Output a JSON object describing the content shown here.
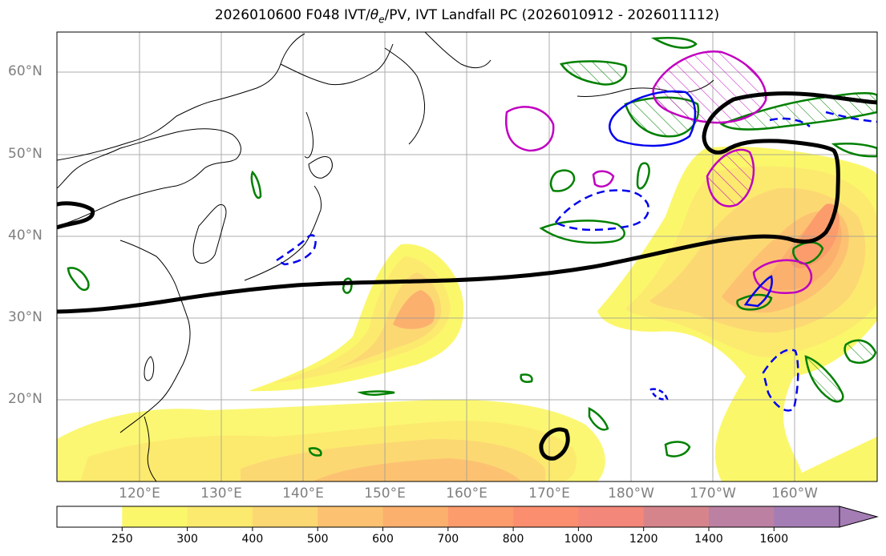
{
  "title": "2026010600 F048 IVT/θe/PV, IVT Landfall PC (2026010912 - 2026011112)",
  "title_parts": {
    "prefix": "2026010600 F048 IVT/",
    "theta": "θ",
    "sub": "e",
    "suffix": "/PV, IVT Landfall PC (2026010912 - 2026011112)"
  },
  "map": {
    "lat_labels": [
      "60°N",
      "50°N",
      "40°N",
      "30°N",
      "20°N"
    ],
    "lon_labels": [
      "120°E",
      "130°E",
      "140°E",
      "150°E",
      "160°E",
      "170°E",
      "180°W",
      "170°W",
      "160°W"
    ],
    "extent": {
      "lon_min": 110,
      "lon_max": 211,
      "lat_min": 10,
      "lat_max": 65
    }
  },
  "colorbar": {
    "levels": [
      "250",
      "300",
      "400",
      "500",
      "600",
      "700",
      "800",
      "1000",
      "1200",
      "1400",
      "1600"
    ],
    "colors": [
      "#ffffff",
      "#fbf76a",
      "#fcea6f",
      "#fcd873",
      "#fcc271",
      "#fcb06e",
      "#fc9c6c",
      "#fb8e6e",
      "#f2877a",
      "#d6848c",
      "#bb80a2",
      "#a57db5"
    ]
  },
  "colors": {
    "ivt_contour_black": "#000000",
    "theta_e_green": "#008000",
    "pv_positive_magenta": "#c000c0",
    "pv_negative_blue": "#0000ee",
    "grid": "#999999",
    "tick_label": "#7f7f7f"
  }
}
